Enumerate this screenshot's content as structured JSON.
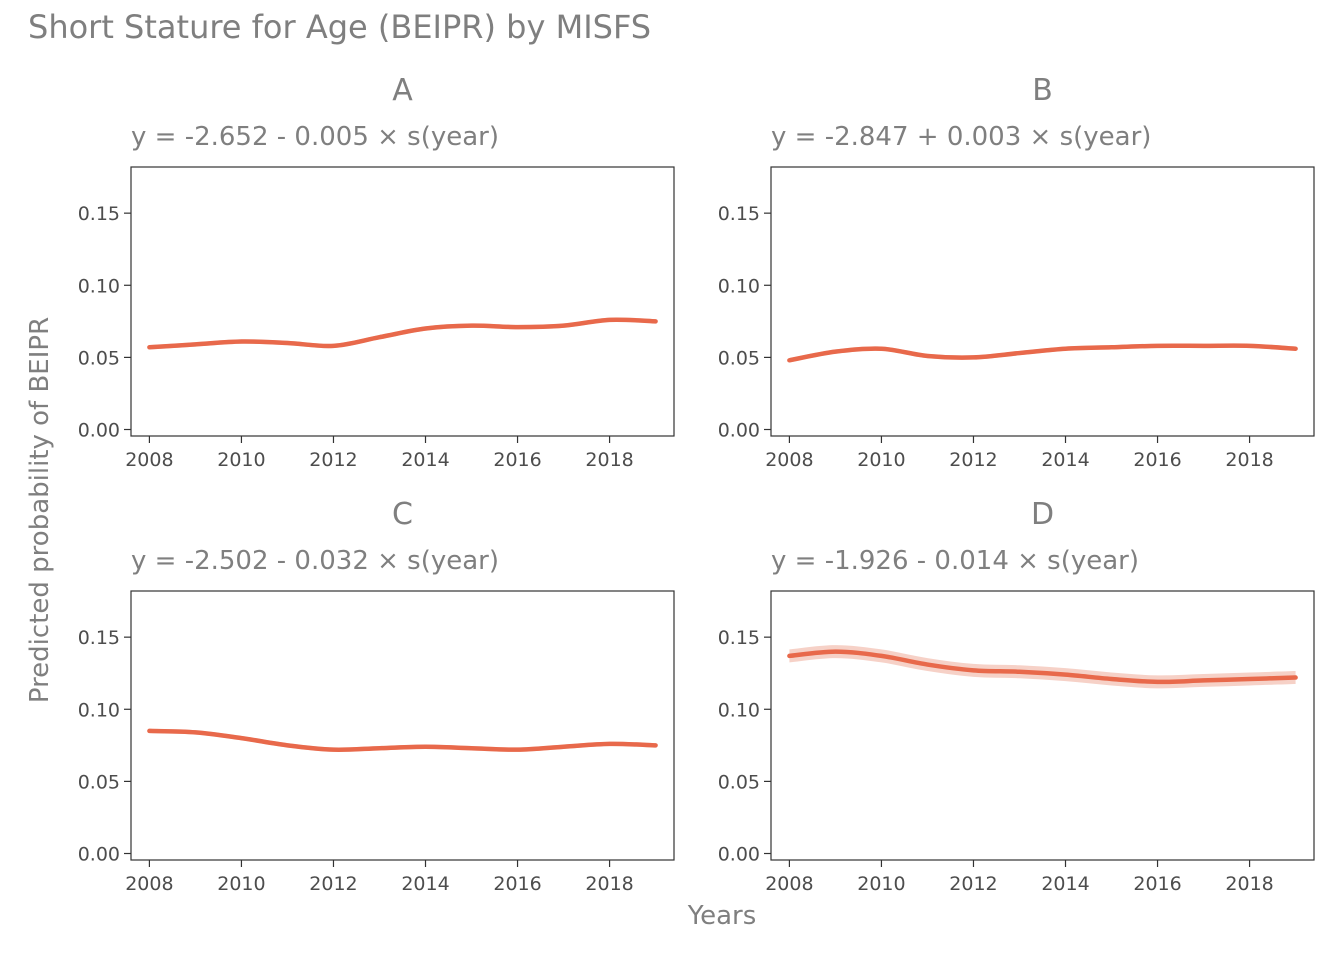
{
  "chart_data": {
    "type": "line",
    "title": "Short Stature for Age (BEIPR) by MISFS",
    "xlabel": "Years",
    "ylabel": "Predicted probability of BEIPR",
    "xlim": [
      2007.6,
      2019.4
    ],
    "ylim": [
      -0.0045,
      0.182
    ],
    "x_ticks": [
      2008,
      2010,
      2012,
      2014,
      2016,
      2018
    ],
    "y_ticks": [
      "0.00",
      "0.05",
      "0.10",
      "0.15"
    ],
    "line_color": "#E8694B",
    "band_color": "#F3C2B4",
    "grid": false,
    "panels": [
      {
        "label": "A",
        "equation": "y = -2.652 - 0.005 × s(year)",
        "x": [
          2008,
          2009,
          2010,
          2011,
          2012,
          2013,
          2014,
          2015,
          2016,
          2017,
          2018,
          2019
        ],
        "values": [
          0.057,
          0.059,
          0.061,
          0.06,
          0.058,
          0.064,
          0.07,
          0.072,
          0.071,
          0.072,
          0.076,
          0.075
        ],
        "band": 0.0015
      },
      {
        "label": "B",
        "equation": "y = -2.847 + 0.003 × s(year)",
        "x": [
          2008,
          2009,
          2010,
          2011,
          2012,
          2013,
          2014,
          2015,
          2016,
          2017,
          2018,
          2019
        ],
        "values": [
          0.048,
          0.054,
          0.056,
          0.051,
          0.05,
          0.053,
          0.056,
          0.057,
          0.058,
          0.058,
          0.058,
          0.056
        ],
        "band": 0.0015
      },
      {
        "label": "C",
        "equation": "y = -2.502 - 0.032 × s(year)",
        "x": [
          2008,
          2009,
          2010,
          2011,
          2012,
          2013,
          2014,
          2015,
          2016,
          2017,
          2018,
          2019
        ],
        "values": [
          0.085,
          0.084,
          0.08,
          0.075,
          0.072,
          0.073,
          0.074,
          0.073,
          0.072,
          0.074,
          0.076,
          0.075
        ],
        "band": 0.0015
      },
      {
        "label": "D",
        "equation": "y = -1.926 - 0.014 × s(year)",
        "x": [
          2008,
          2009,
          2010,
          2011,
          2012,
          2013,
          2014,
          2015,
          2016,
          2017,
          2018,
          2019
        ],
        "values": [
          0.137,
          0.14,
          0.137,
          0.131,
          0.127,
          0.126,
          0.124,
          0.121,
          0.119,
          0.12,
          0.121,
          0.122
        ],
        "band": 0.0045
      }
    ]
  }
}
